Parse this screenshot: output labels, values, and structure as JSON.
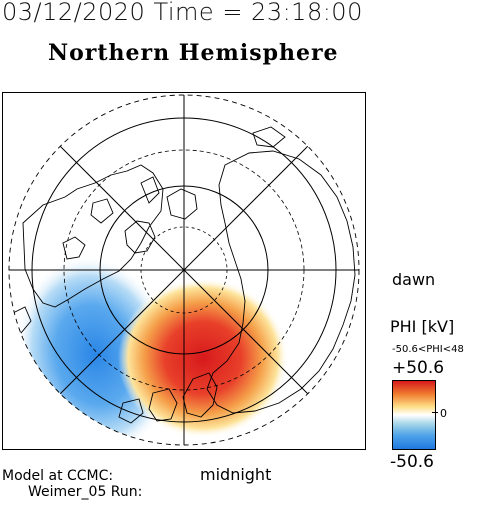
{
  "header": {
    "timestamp": "03/12/2020 Time = 23:18:00",
    "hemisphere": "Northern Hemisphere"
  },
  "map": {
    "projection": "north polar stereographic",
    "dawn_label": "dawn",
    "midnight_label": "midnight",
    "features": [
      "coastlines",
      "latitude circles",
      "longitude meridians",
      "potential pattern"
    ]
  },
  "colorbar": {
    "title": "PHI [kV]",
    "range_text": "-50.6<PHI<48",
    "max_label": "+50.6",
    "zero_label": "0",
    "min_label": "-50.6",
    "colors": {
      "max": "#d7191c",
      "mid": "#ffffff",
      "min": "#1f78e0"
    }
  },
  "footer": {
    "model_line": "Model at CCMC:",
    "run_line": "Weimer_05 Run:"
  }
}
